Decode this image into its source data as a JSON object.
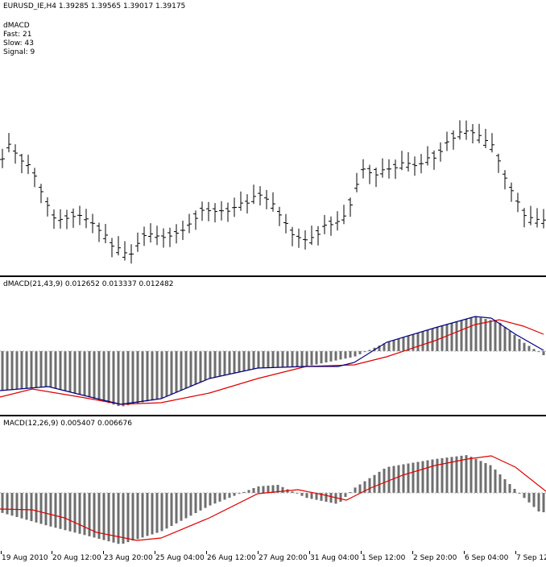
{
  "main": {
    "header": "EURUSD_IE,H4  1.39285 1.39565 1.39017 1.39175",
    "indicator_lines": [
      "dMACD",
      "Fast: 21",
      "Slow: 43",
      "Signal: 9"
    ]
  },
  "sub1": {
    "header": "dMACD(21,43,9) 0.012652 0.013337 0.012482"
  },
  "sub2": {
    "header": "MACD(12,26,9) 0.005407 0.006676"
  },
  "time_axis": [
    "19 Aug 2010",
    "20 Aug 12:00",
    "23 Aug 20:00",
    "25 Aug 04:00",
    "26 Aug 12:00",
    "27 Aug 20:00",
    "31 Aug 04:00",
    "1 Sep 12:00",
    "2 Sep 20:00",
    "6 Sep 04:00",
    "7 Sep 12:"
  ],
  "colors": {
    "bars": "#000000",
    "histogram": "#6e6e6e",
    "dmacd_line": "#000080",
    "signal_line": "#e00000",
    "background": "#ffffff"
  },
  "chart_data": [
    {
      "type": "ohlc",
      "symbol": "EURUSD_IE",
      "timeframe": "H4",
      "last": {
        "open": 1.39285,
        "high": 1.39565,
        "low": 1.39017,
        "close": 1.39175
      }
    },
    {
      "type": "histogram+lines",
      "name": "dMACD(21,43,9)",
      "readout": [
        0.012652,
        0.013337,
        0.012482
      ]
    },
    {
      "type": "histogram+line",
      "name": "MACD(12,26,9)",
      "readout": [
        0.005407,
        0.006676
      ]
    }
  ]
}
